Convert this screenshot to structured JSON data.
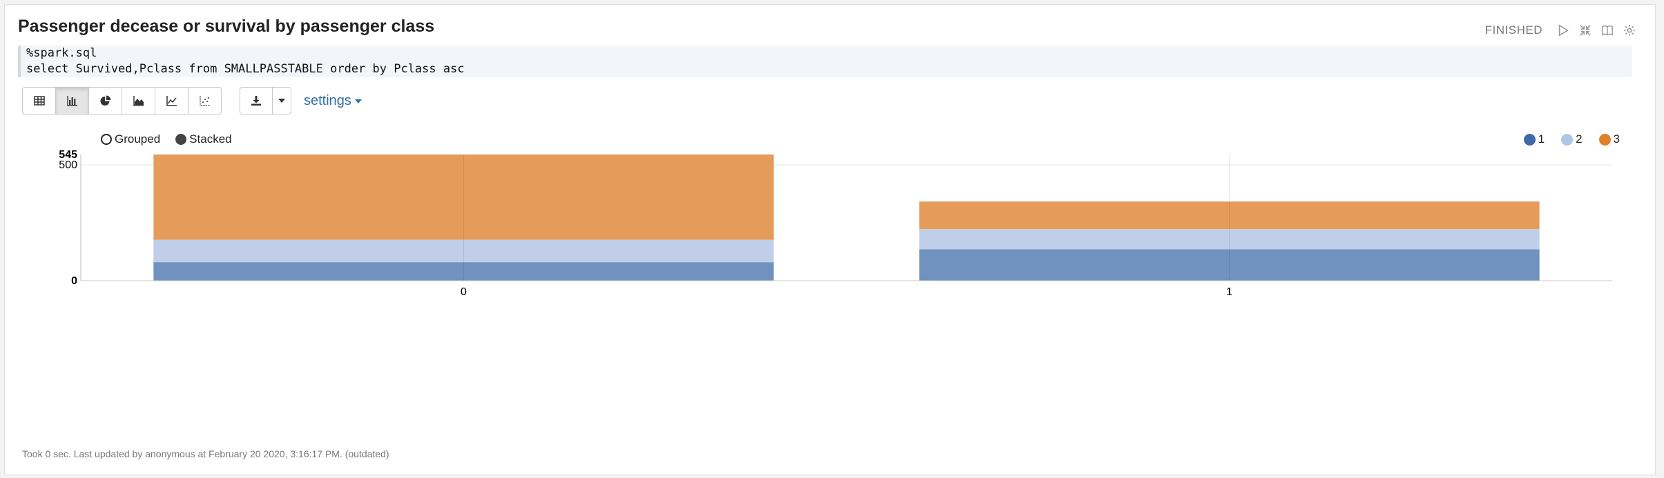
{
  "paragraph": {
    "title": "Passenger decease or survival by passenger class",
    "status": "FINISHED",
    "code_line1": "%spark.sql",
    "code_line2": "select Survived,Pclass from SMALLPASSTABLE order by Pclass asc",
    "settings_label": "settings",
    "footer": "Took 0 sec. Last updated by anonymous at February 20 2020, 3:16:17 PM. (outdated)"
  },
  "toolbar": {
    "icons": [
      "table-icon",
      "bar-chart-icon",
      "pie-chart-icon",
      "area-chart-icon",
      "line-chart-icon",
      "scatter-chart-icon"
    ],
    "active": "bar-chart-icon"
  },
  "chart_options": {
    "grouped_label": "Grouped",
    "stacked_label": "Stacked",
    "selected": "Stacked"
  },
  "chart_data": {
    "type": "bar",
    "stacked": true,
    "categories": [
      "0",
      "1"
    ],
    "series": [
      {
        "name": "1",
        "values": [
          80,
          136
        ],
        "color": "#7092bf"
      },
      {
        "name": "2",
        "values": [
          97,
          87
        ],
        "color": "#c0cee9"
      },
      {
        "name": "3",
        "values": [
          368,
          119
        ],
        "color": "#e59c5a"
      }
    ],
    "y_ticks": [
      "0",
      "500",
      "545"
    ],
    "ylim": [
      0,
      545
    ],
    "legend_position": "top-right",
    "grid": true
  }
}
